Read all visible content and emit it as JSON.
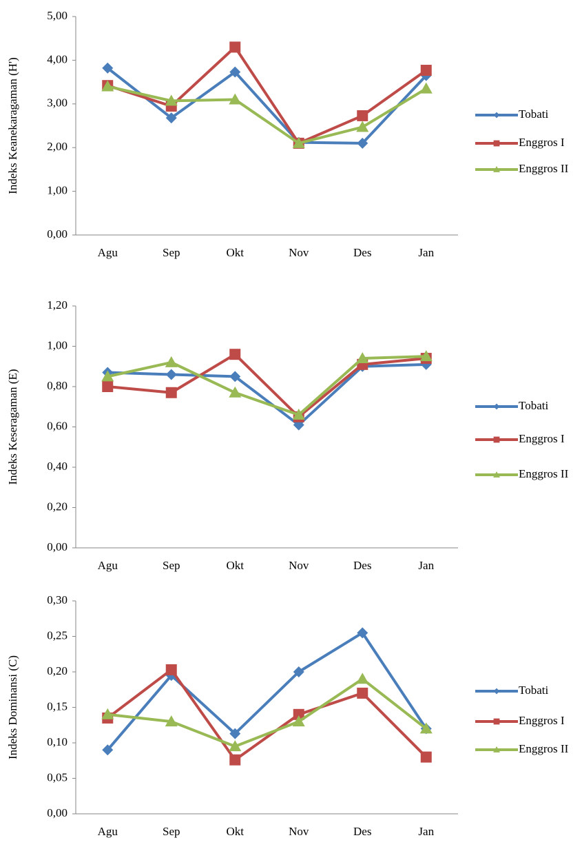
{
  "chart_data": [
    {
      "type": "line",
      "ylabel": "Indeks Keanekaragaman (H')",
      "categories": [
        "Agu",
        "Sep",
        "Okt",
        "Nov",
        "Des",
        "Jan"
      ],
      "ylim": [
        0,
        5
      ],
      "yticks": [
        {
          "value": 0,
          "label": "0,00"
        },
        {
          "value": 1,
          "label": "1,00"
        },
        {
          "value": 2,
          "label": "2,00"
        },
        {
          "value": 3,
          "label": "3,00"
        },
        {
          "value": 4,
          "label": "4,00"
        },
        {
          "value": 5,
          "label": "5,00"
        }
      ],
      "series": [
        {
          "name": "Tobati",
          "color": "#4a7ebb",
          "marker": "diamond",
          "values": [
            3.82,
            2.68,
            3.73,
            2.12,
            2.1,
            3.65
          ]
        },
        {
          "name": "Enggros I",
          "color": "#be4b48",
          "marker": "square",
          "values": [
            3.42,
            2.95,
            4.3,
            2.1,
            2.73,
            3.77
          ]
        },
        {
          "name": "Enggros II",
          "color": "#98b954",
          "marker": "triangle",
          "values": [
            3.4,
            3.07,
            3.1,
            2.1,
            2.47,
            3.35
          ]
        }
      ]
    },
    {
      "type": "line",
      "ylabel": "Indeks Keseragaman (E)",
      "categories": [
        "Agu",
        "Sep",
        "Okt",
        "Nov",
        "Des",
        "Jan"
      ],
      "ylim": [
        0,
        1.2
      ],
      "yticks": [
        {
          "value": 0,
          "label": "0,00"
        },
        {
          "value": 0.2,
          "label": "0,20"
        },
        {
          "value": 0.4,
          "label": "0,40"
        },
        {
          "value": 0.6,
          "label": "0,60"
        },
        {
          "value": 0.8,
          "label": "0,80"
        },
        {
          "value": 1,
          "label": "1,00"
        },
        {
          "value": 1.2,
          "label": "1,20"
        }
      ],
      "series": [
        {
          "name": "Tobati",
          "color": "#4a7ebb",
          "marker": "diamond",
          "values": [
            0.87,
            0.86,
            0.85,
            0.61,
            0.9,
            0.91
          ]
        },
        {
          "name": "Enggros I",
          "color": "#be4b48",
          "marker": "square",
          "values": [
            0.8,
            0.77,
            0.96,
            0.65,
            0.91,
            0.94
          ]
        },
        {
          "name": "Enggros II",
          "color": "#98b954",
          "marker": "triangle",
          "values": [
            0.85,
            0.92,
            0.77,
            0.66,
            0.94,
            0.95
          ]
        }
      ]
    },
    {
      "type": "line",
      "ylabel": "Indeks Dominansi (C)",
      "categories": [
        "Agu",
        "Sep",
        "Okt",
        "Nov",
        "Des",
        "Jan"
      ],
      "ylim": [
        0,
        0.3
      ],
      "yticks": [
        {
          "value": 0,
          "label": "0,00"
        },
        {
          "value": 0.05,
          "label": "0,05"
        },
        {
          "value": 0.1,
          "label": "0,10"
        },
        {
          "value": 0.15,
          "label": "0,15"
        },
        {
          "value": 0.2,
          "label": "0,20"
        },
        {
          "value": 0.25,
          "label": "0,25"
        },
        {
          "value": 0.3,
          "label": "0,30"
        }
      ],
      "series": [
        {
          "name": "Tobati",
          "color": "#4a7ebb",
          "marker": "diamond",
          "values": [
            0.09,
            0.195,
            0.113,
            0.2,
            0.255,
            0.12
          ]
        },
        {
          "name": "Enggros I",
          "color": "#be4b48",
          "marker": "square",
          "values": [
            0.135,
            0.203,
            0.076,
            0.14,
            0.17,
            0.08
          ]
        },
        {
          "name": "Enggros II",
          "color": "#98b954",
          "marker": "triangle",
          "values": [
            0.14,
            0.13,
            0.095,
            0.13,
            0.19,
            0.12
          ]
        }
      ]
    }
  ]
}
